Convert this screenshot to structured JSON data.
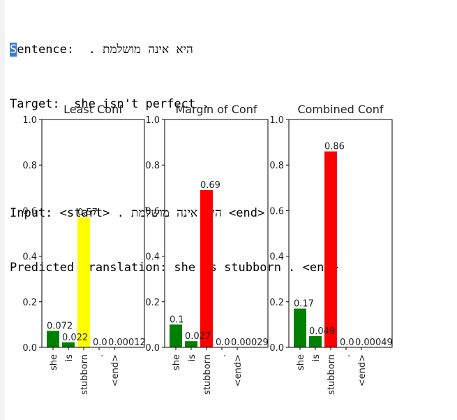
{
  "output": {
    "sentence_label_first": "S",
    "sentence_label_rest": "entence:",
    "sentence_text": "היא אינה מושלמת .",
    "target_label": "Target:",
    "target_text": "she isn't perfect .",
    "input_label": "Input:",
    "input_start": "<start>",
    "input_text": "היא אינה מושלמת .",
    "input_end": "<end>",
    "predicted_label": "Predicted translation:",
    "predicted_text": "she is stubborn . <end>"
  },
  "chart_data": [
    {
      "type": "bar",
      "title": "Least Conf",
      "categories": [
        "she",
        "is",
        "stubborn",
        ".",
        "<end>"
      ],
      "values": [
        0.072,
        0.022,
        0.57,
        0.0,
        0.0
      ],
      "labels": [
        "0.072",
        "0.022",
        "0.57",
        "0.0",
        "0.00012"
      ],
      "colors": [
        "#008000",
        "#008000",
        "#ffff00",
        "#008000",
        "#008000"
      ],
      "ylim": [
        0,
        1
      ],
      "yticks": [
        "0.0",
        "0.2",
        "0.4",
        "0.6",
        "0.8",
        "1.0"
      ],
      "xlabel": "",
      "ylabel": "",
      "grid": false
    },
    {
      "type": "bar",
      "title": "Margin of Conf",
      "categories": [
        "she",
        "is",
        "stubborn",
        ".",
        "<end>"
      ],
      "values": [
        0.1,
        0.027,
        0.69,
        0.0,
        0.0
      ],
      "labels": [
        "0.1",
        "0.027",
        "0.69",
        "0.0",
        "0.00029"
      ],
      "colors": [
        "#008000",
        "#008000",
        "#ff0000",
        "#008000",
        "#008000"
      ],
      "ylim": [
        0,
        1
      ],
      "yticks": [
        "0.0",
        "0.2",
        "0.4",
        "0.6",
        "0.8",
        "1.0"
      ],
      "xlabel": "",
      "ylabel": "",
      "grid": false
    },
    {
      "type": "bar",
      "title": "Combined Conf",
      "categories": [
        "she",
        "is",
        "stubborn",
        ".",
        "<end>"
      ],
      "values": [
        0.17,
        0.049,
        0.86,
        0.0,
        0.0
      ],
      "labels": [
        "0.17",
        "0.049",
        "0.86",
        "0.0",
        "0.00049"
      ],
      "colors": [
        "#008000",
        "#008000",
        "#ff0000",
        "#008000",
        "#008000"
      ],
      "ylim": [
        0,
        1
      ],
      "yticks": [
        "0.0",
        "0.2",
        "0.4",
        "0.6",
        "0.8",
        "1.0"
      ],
      "xlabel": "",
      "ylabel": "",
      "grid": false
    }
  ]
}
